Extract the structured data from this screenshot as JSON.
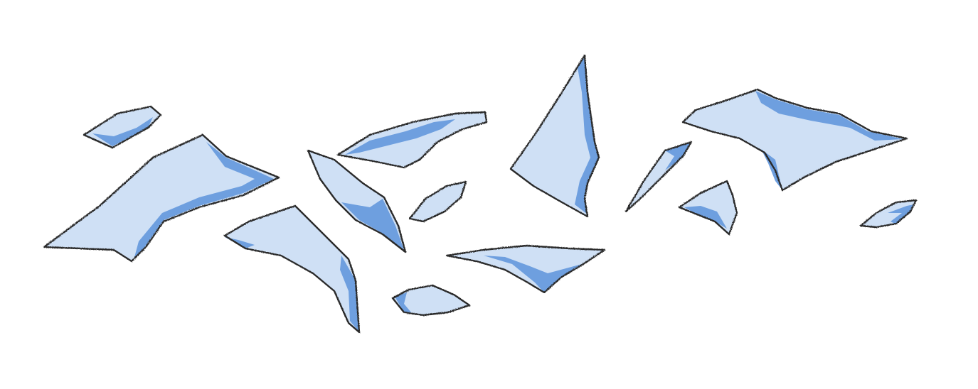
{
  "illustration": {
    "subject": "broken-glass-shards",
    "colors": {
      "background": "#ffffff",
      "glass_fill": "#cfe0f5",
      "glass_shade": "#6e9fdf",
      "outline": "#2a2a2a"
    }
  }
}
